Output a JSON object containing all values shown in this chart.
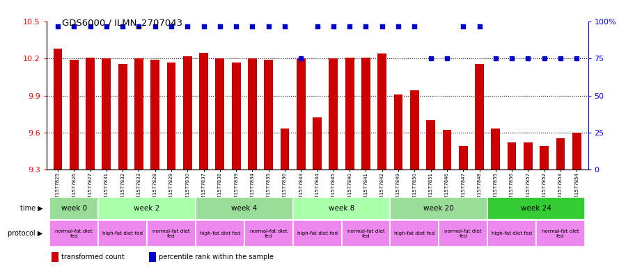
{
  "title": "GDS6000 / ILMN_2707043",
  "samples": [
    "GSM1577825",
    "GSM1577826",
    "GSM1577827",
    "GSM1577831",
    "GSM1577832",
    "GSM1577833",
    "GSM1577828",
    "GSM1577829",
    "GSM1577830",
    "GSM1577837",
    "GSM1577838",
    "GSM1577839",
    "GSM1577834",
    "GSM1577835",
    "GSM1577836",
    "GSM1577843",
    "GSM1577844",
    "GSM1577845",
    "GSM1577840",
    "GSM1577841",
    "GSM1577842",
    "GSM1577849",
    "GSM1577850",
    "GSM1577851",
    "GSM1577846",
    "GSM1577847",
    "GSM1577848",
    "GSM1577855",
    "GSM1577856",
    "GSM1577857",
    "GSM1577852",
    "GSM1577853",
    "GSM1577854"
  ],
  "bar_values": [
    10.28,
    10.19,
    10.21,
    10.2,
    10.16,
    10.2,
    10.19,
    10.17,
    10.22,
    10.25,
    10.2,
    10.17,
    10.2,
    10.19,
    9.63,
    10.2,
    9.72,
    10.2,
    10.21,
    10.21,
    10.24,
    9.91,
    9.94,
    9.7,
    9.62,
    9.49,
    10.16,
    9.63,
    9.52,
    9.52,
    9.49,
    9.55,
    9.6
  ],
  "percentile_values": [
    97,
    97,
    97,
    97,
    97,
    97,
    97,
    97,
    97,
    97,
    97,
    97,
    97,
    97,
    97,
    75,
    97,
    97,
    97,
    97,
    97,
    97,
    97,
    75,
    75,
    97,
    97,
    75,
    75,
    75,
    75,
    75,
    75
  ],
  "ylim_left": [
    9.3,
    10.5
  ],
  "ylim_right": [
    0,
    100
  ],
  "yticks_left": [
    9.3,
    9.6,
    9.9,
    10.2,
    10.5
  ],
  "yticks_right": [
    0,
    25,
    50,
    75,
    100
  ],
  "bar_color": "#cc0000",
  "dot_color": "#0000cc",
  "time_groups": [
    {
      "label": "week 0",
      "start": 0,
      "end": 3
    },
    {
      "label": "week 2",
      "start": 3,
      "end": 9
    },
    {
      "label": "week 4",
      "start": 9,
      "end": 15
    },
    {
      "label": "week 8",
      "start": 15,
      "end": 21
    },
    {
      "label": "week 20",
      "start": 21,
      "end": 27
    },
    {
      "label": "week 24",
      "start": 27,
      "end": 33
    }
  ],
  "time_colors": [
    "#99dd99",
    "#aaffaa",
    "#99dd99",
    "#aaffaa",
    "#99dd99",
    "#33cc33"
  ],
  "protocol_groups": [
    {
      "label": "normal-fat diet\nfed",
      "start": 0,
      "end": 3
    },
    {
      "label": "high-fat diet fed",
      "start": 3,
      "end": 6
    },
    {
      "label": "normal-fat diet\nfed",
      "start": 6,
      "end": 9
    },
    {
      "label": "high-fat diet fed",
      "start": 9,
      "end": 12
    },
    {
      "label": "normal-fat diet\nfed",
      "start": 12,
      "end": 15
    },
    {
      "label": "high-fat diet fed",
      "start": 15,
      "end": 18
    },
    {
      "label": "normal-fat diet\nfed",
      "start": 18,
      "end": 21
    },
    {
      "label": "high-fat diet fed",
      "start": 21,
      "end": 24
    },
    {
      "label": "normal-fat diet\nfed",
      "start": 24,
      "end": 27
    },
    {
      "label": "high-fat diet fed",
      "start": 27,
      "end": 30
    },
    {
      "label": "normal-fat diet\nfed",
      "start": 30,
      "end": 33
    }
  ],
  "proto_color": "#ee88ee",
  "legend_items": [
    {
      "label": "transformed count",
      "color": "#cc0000"
    },
    {
      "label": "percentile rank within the sample",
      "color": "#0000cc"
    }
  ],
  "background_color": "#ffffff",
  "fig_width": 8.89,
  "fig_height": 3.93,
  "dpi": 100
}
